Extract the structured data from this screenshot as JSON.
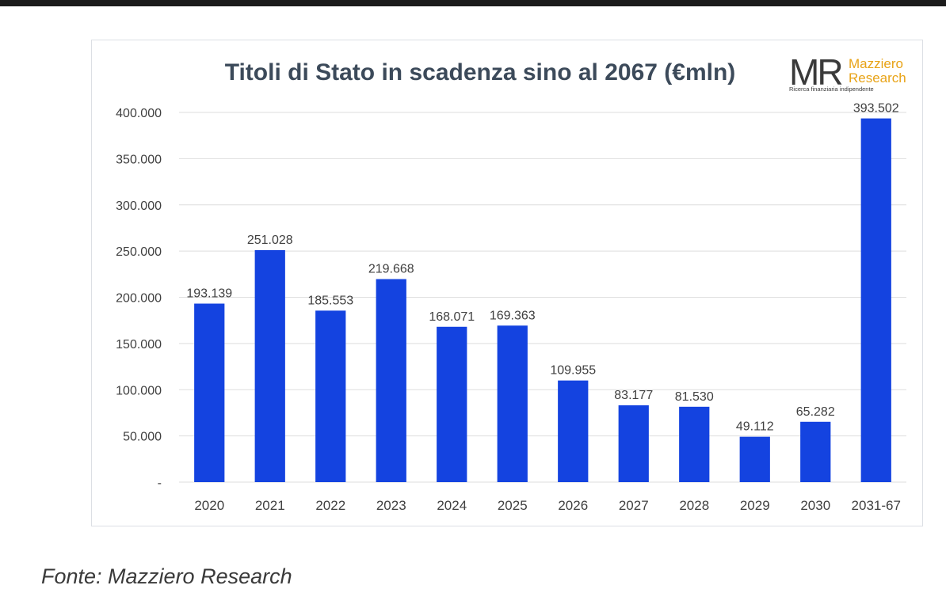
{
  "caption": "Fonte: Mazziero Research",
  "logo": {
    "mark": "MR",
    "name_line1": "Mazziero",
    "name_line2": "Research",
    "tagline": "Ricerca finanziaria indipendente"
  },
  "colors": {
    "bar": "#1443e0",
    "gridline": "#dedede",
    "axis_text": "#404040",
    "title": "#3c4a5a",
    "logo_orange": "#e8a317",
    "logo_dark": "#3a3a3a"
  },
  "chart_data": {
    "type": "bar",
    "title": "Titoli di Stato in scadenza sino al 2067 (€mln)",
    "xlabel": "",
    "ylabel": "",
    "categories": [
      "2020",
      "2021",
      "2022",
      "2023",
      "2024",
      "2025",
      "2026",
      "2027",
      "2028",
      "2029",
      "2030",
      "2031-67"
    ],
    "values": [
      193139,
      251028,
      185553,
      219668,
      168071,
      169363,
      109955,
      83177,
      81530,
      49112,
      65282,
      393502
    ],
    "value_labels": [
      "193.139",
      "251.028",
      "185.553",
      "219.668",
      "168.071",
      "169.363",
      "109.955",
      "83.177",
      "81.530",
      "49.112",
      "65.282",
      "393.502"
    ],
    "ylim": [
      0,
      400000
    ],
    "yticks": [
      0,
      50000,
      100000,
      150000,
      200000,
      250000,
      300000,
      350000,
      400000
    ],
    "ytick_labels": [
      "-",
      "50.000",
      "100.000",
      "150.000",
      "200.000",
      "250.000",
      "300.000",
      "350.000",
      "400.000"
    ],
    "grid": true,
    "legend": "none"
  }
}
